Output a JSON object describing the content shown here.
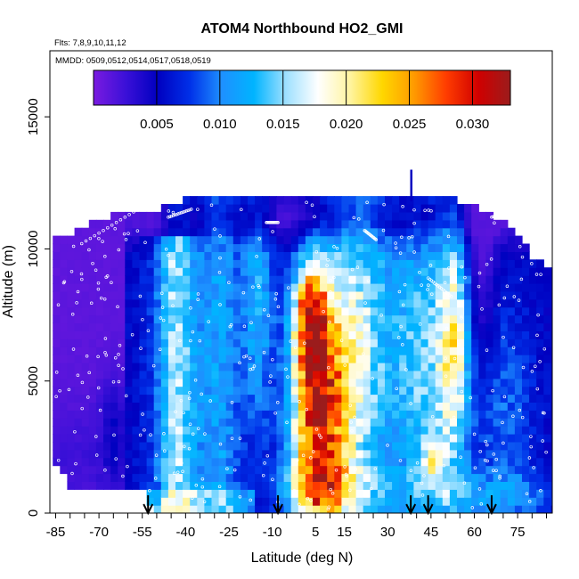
{
  "chart_data": {
    "type": "heatmap",
    "title": "ATOM4 Northbound HO2_GMI",
    "flights_label": "Flts: 7,8,9,10,11,12",
    "dates_label": "MMDD: 0509,0512,0514,0517,0518,0519",
    "xlabel": "Latitude (deg N)",
    "ylabel": "Altitude (m)",
    "xlim": [
      -87,
      87
    ],
    "ylim": [
      0,
      17500
    ],
    "x_ticks": [
      -85,
      -70,
      -55,
      -40,
      -25,
      -10,
      5,
      15,
      30,
      45,
      60,
      75
    ],
    "x_minor_ticks": [
      -80,
      -75,
      -65,
      -60,
      -50,
      -45,
      -35,
      -30,
      -20,
      -15,
      -5,
      0,
      10,
      20,
      25,
      35,
      40,
      50,
      55,
      65,
      70,
      80,
      85
    ],
    "y_ticks": [
      0,
      5000,
      10000,
      15000
    ],
    "colorbar": {
      "min": 0.0,
      "max": 0.033,
      "ticks": [
        0.005,
        0.01,
        0.015,
        0.02,
        0.025,
        0.03
      ],
      "tick_labels": [
        "0.005",
        "0.010",
        "0.015",
        "0.020",
        "0.025",
        "0.030"
      ],
      "colors": [
        "#7a1be0",
        "#3b10d8",
        "#0000c0",
        "#0030e8",
        "#1e90ff",
        "#00b4ff",
        "#9ee0ff",
        "#ffffff",
        "#fff4a0",
        "#ffd700",
        "#ff9a00",
        "#ff3c00",
        "#d00000",
        "#9b1c1c"
      ]
    },
    "profile_bottom_m": {
      "lat": [
        -85,
        -80,
        -75,
        -70,
        -65,
        -60,
        -55,
        -50,
        -45,
        -40,
        -35,
        -30,
        -25,
        -20,
        -15,
        -10,
        -5,
        0,
        5,
        10,
        15,
        20,
        25,
        30,
        35,
        40,
        45,
        50,
        55,
        60,
        65,
        70,
        75,
        80,
        85
      ],
      "bottom": [
        1800,
        1000,
        900,
        900,
        900,
        900,
        900,
        0,
        0,
        0,
        0,
        0,
        0,
        0,
        0,
        0,
        0,
        0,
        0,
        0,
        0,
        0,
        0,
        0,
        0,
        0,
        0,
        0,
        0,
        0,
        0,
        0,
        0,
        0,
        0
      ]
    },
    "profile_top_m": {
      "lat": [
        -85,
        -80,
        -75,
        -70,
        -65,
        -60,
        -55,
        -50,
        -45,
        -40,
        -35,
        -30,
        -25,
        -20,
        -15,
        -10,
        -5,
        0,
        5,
        10,
        15,
        20,
        25,
        30,
        35,
        40,
        45,
        50,
        55,
        60,
        65,
        70,
        75,
        80,
        85
      ],
      "top": [
        10400,
        10600,
        10900,
        11100,
        11300,
        11500,
        11500,
        11400,
        11700,
        11900,
        12000,
        12000,
        12000,
        12000,
        12000,
        12000,
        12000,
        12000,
        12000,
        12000,
        12000,
        12000,
        12000,
        12000,
        12000,
        12000,
        12000,
        12000,
        11800,
        11600,
        11400,
        11000,
        10500,
        9700,
        9300
      ]
    },
    "arrow_latitudes": [
      -53,
      -8,
      38,
      44,
      66
    ]
  }
}
